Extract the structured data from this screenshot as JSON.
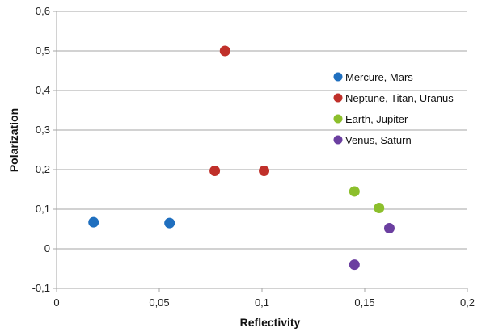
{
  "chart_data": {
    "type": "scatter",
    "xlabel": "Reflectivity",
    "ylabel": "Polarization",
    "xlim": [
      0,
      0.2
    ],
    "ylim": [
      -0.1,
      0.6
    ],
    "x_ticks": [
      "0",
      "0,05",
      "0,1",
      "0,15",
      "0,2"
    ],
    "y_ticks": [
      "-0,1",
      "0",
      "0,1",
      "0,2",
      "0,3",
      "0,4",
      "0,5",
      "0,6"
    ],
    "grid": "horizontal",
    "legend_position": "right",
    "series": [
      {
        "name": "Mercure, Mars",
        "color": "#1f6fbf",
        "points": [
          {
            "x": 0.018,
            "y": 0.067
          },
          {
            "x": 0.055,
            "y": 0.065
          }
        ]
      },
      {
        "name": "Neptune, Titan, Uranus",
        "color": "#c0302a",
        "points": [
          {
            "x": 0.082,
            "y": 0.5
          },
          {
            "x": 0.077,
            "y": 0.197
          },
          {
            "x": 0.101,
            "y": 0.197
          }
        ]
      },
      {
        "name": "Earth, Jupiter",
        "color": "#8cbf2c",
        "points": [
          {
            "x": 0.145,
            "y": 0.145
          },
          {
            "x": 0.157,
            "y": 0.103
          }
        ]
      },
      {
        "name": "Venus, Saturn",
        "color": "#6b3fa0",
        "points": [
          {
            "x": 0.162,
            "y": 0.052
          },
          {
            "x": 0.145,
            "y": -0.04
          }
        ]
      }
    ]
  }
}
